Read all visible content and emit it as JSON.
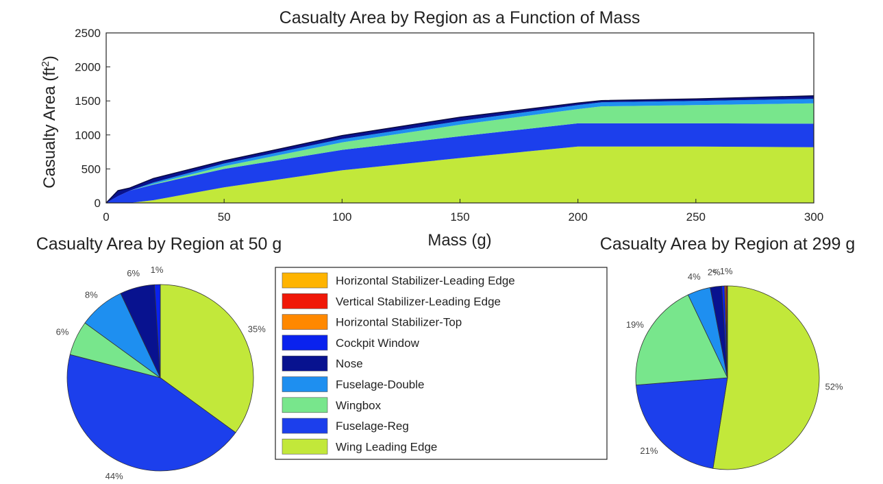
{
  "chart_data": [
    {
      "type": "area",
      "stacked": true,
      "title": "Casualty Area by Region as a Function of Mass",
      "xlabel": "Mass (g)",
      "ylabel_base": "Casualty Area (ft",
      "ylabel_sup": "2",
      "ylabel_close": ")",
      "xlim": [
        0,
        300
      ],
      "ylim": [
        0,
        2500
      ],
      "xticks": [
        0,
        50,
        100,
        150,
        200,
        250,
        300
      ],
      "yticks": [
        0,
        500,
        1000,
        1500,
        2000,
        2500
      ],
      "x": [
        0,
        5,
        10,
        20,
        50,
        100,
        150,
        200,
        210,
        250,
        300
      ],
      "series": [
        {
          "name": "Wing Leading Edge",
          "color": "#c2e83a",
          "values": [
            0,
            0,
            0,
            40,
            230,
            480,
            660,
            830,
            830,
            830,
            820
          ]
        },
        {
          "name": "Fuselage-Reg",
          "color": "#1c3fec",
          "values": [
            0,
            100,
            180,
            230,
            270,
            300,
            320,
            340,
            340,
            340,
            345
          ]
        },
        {
          "name": "Wingbox",
          "color": "#78e68c",
          "values": [
            0,
            0,
            0,
            10,
            40,
            110,
            170,
            210,
            250,
            270,
            300
          ]
        },
        {
          "name": "Fuselage-Double",
          "color": "#1e8ff0",
          "values": [
            0,
            0,
            0,
            20,
            40,
            50,
            55,
            60,
            60,
            60,
            65
          ]
        },
        {
          "name": "Nose",
          "color": "#08128f",
          "values": [
            0,
            80,
            40,
            60,
            40,
            50,
            55,
            30,
            25,
            30,
            45
          ]
        },
        {
          "name": "Cockpit Window",
          "color": "#0a22ee",
          "values": [
            0,
            0,
            0,
            0,
            0,
            0,
            0,
            0,
            0,
            0,
            0
          ]
        },
        {
          "name": "Horizontal Stabilizer-Top",
          "color": "#ff8800",
          "values": [
            0,
            0,
            0,
            0,
            0,
            0,
            0,
            0,
            0,
            0,
            0
          ]
        },
        {
          "name": "Vertical Stabilizer-Leading Edge",
          "color": "#f01808",
          "values": [
            0,
            0,
            0,
            0,
            0,
            0,
            0,
            0,
            0,
            0,
            0
          ]
        },
        {
          "name": "Horizontal Stabilizer-Leading Edge",
          "color": "#ffb400",
          "values": [
            0,
            0,
            0,
            0,
            0,
            0,
            0,
            0,
            0,
            0,
            0
          ]
        }
      ]
    },
    {
      "type": "pie",
      "title": "Casualty Area by Region at 50 g",
      "slices": [
        {
          "name": "Wing Leading Edge",
          "color": "#c2e83a",
          "value": 35,
          "label": "35%"
        },
        {
          "name": "Fuselage-Reg",
          "color": "#1c3fec",
          "value": 44,
          "label": "44%"
        },
        {
          "name": "Wingbox",
          "color": "#78e68c",
          "value": 6,
          "label": "6%"
        },
        {
          "name": "Fuselage-Double",
          "color": "#1e8ff0",
          "value": 8,
          "label": "8%"
        },
        {
          "name": "Nose",
          "color": "#08128f",
          "value": 6,
          "label": "6%"
        },
        {
          "name": "Cockpit Window",
          "color": "#0a22ee",
          "value": 1,
          "label": "1%"
        }
      ]
    },
    {
      "type": "pie",
      "title": "Casualty Area by Region at 299 g",
      "slices": [
        {
          "name": "Wing Leading Edge",
          "color": "#c2e83a",
          "value": 52,
          "label": "52%"
        },
        {
          "name": "Fuselage-Reg",
          "color": "#1c3fec",
          "value": 21,
          "label": "21%"
        },
        {
          "name": "Wingbox",
          "color": "#78e68c",
          "value": 19,
          "label": "19%"
        },
        {
          "name": "Fuselage-Double",
          "color": "#1e8ff0",
          "value": 4,
          "label": "4%"
        },
        {
          "name": "Nose",
          "color": "#08128f",
          "value": 2,
          "label": "2%"
        },
        {
          "name": "Cockpit Window",
          "color": "#0a22ee",
          "value": 0.5,
          "label": "< 1%"
        },
        {
          "name": "Horizontal Stabilizer-Top",
          "color": "#ff8800",
          "value": 0.2,
          "label": ""
        },
        {
          "name": "Vertical Stabilizer-Leading Edge",
          "color": "#f01808",
          "value": 0.2,
          "label": ""
        },
        {
          "name": "Horizontal Stabilizer-Leading Edge",
          "color": "#ffb400",
          "value": 0.1,
          "label": ""
        }
      ]
    }
  ],
  "legend": {
    "placement": "bottom-center",
    "items": [
      {
        "label": "Horizontal Stabilizer-Leading Edge",
        "color": "#ffb400"
      },
      {
        "label": "Vertical Stabilizer-Leading Edge",
        "color": "#f01808"
      },
      {
        "label": "Horizontal Stabilizer-Top",
        "color": "#ff8800"
      },
      {
        "label": "Cockpit Window",
        "color": "#0a22ee"
      },
      {
        "label": "Nose",
        "color": "#08128f"
      },
      {
        "label": "Fuselage-Double",
        "color": "#1e8ff0"
      },
      {
        "label": "Wingbox",
        "color": "#78e68c"
      },
      {
        "label": "Fuselage-Reg",
        "color": "#1c3fec"
      },
      {
        "label": "Wing Leading Edge",
        "color": "#c2e83a"
      }
    ]
  }
}
